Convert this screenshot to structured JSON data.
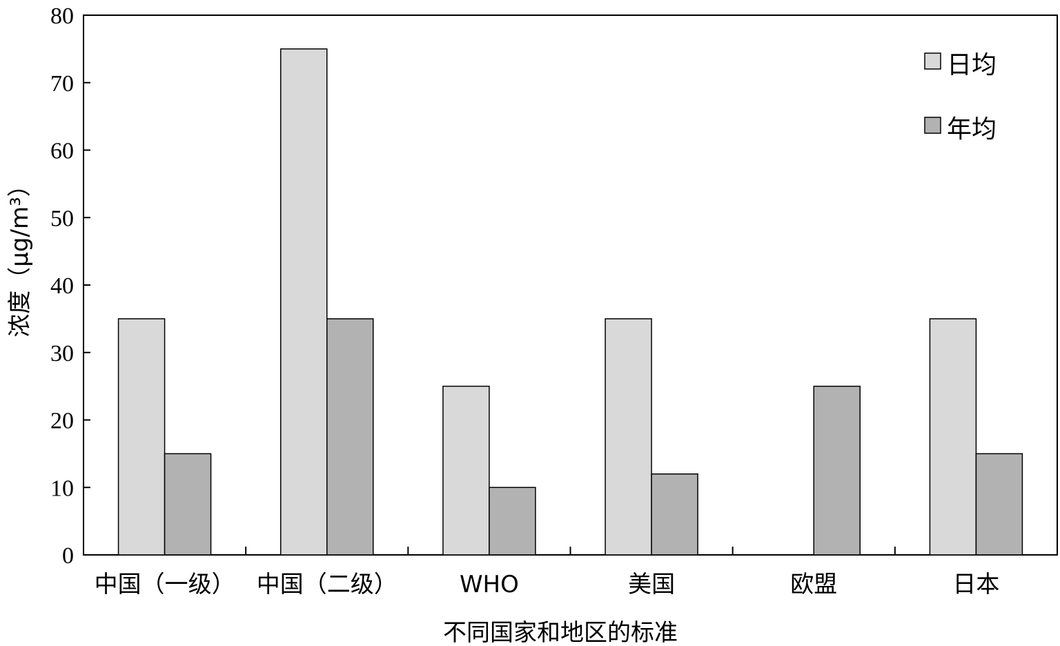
{
  "chart_data": {
    "type": "bar",
    "xlabel": "不同国家和地区的标准",
    "ylabel": "浓度（μg/m³）",
    "ylim": [
      0,
      80
    ],
    "yticks": [
      0,
      10,
      20,
      30,
      40,
      50,
      60,
      70,
      80
    ],
    "categories": [
      "中国（一级）",
      "中国（二级）",
      "WHO",
      "美国",
      "欧盟",
      "日本"
    ],
    "series": [
      {
        "name": "日均",
        "color": "#d9d9d9",
        "values": [
          35,
          75,
          25,
          35,
          null,
          35
        ]
      },
      {
        "name": "年均",
        "color": "#b2b2b2",
        "values": [
          15,
          35,
          10,
          12,
          25,
          15
        ]
      }
    ],
    "legend": "top-right",
    "grid": false
  }
}
